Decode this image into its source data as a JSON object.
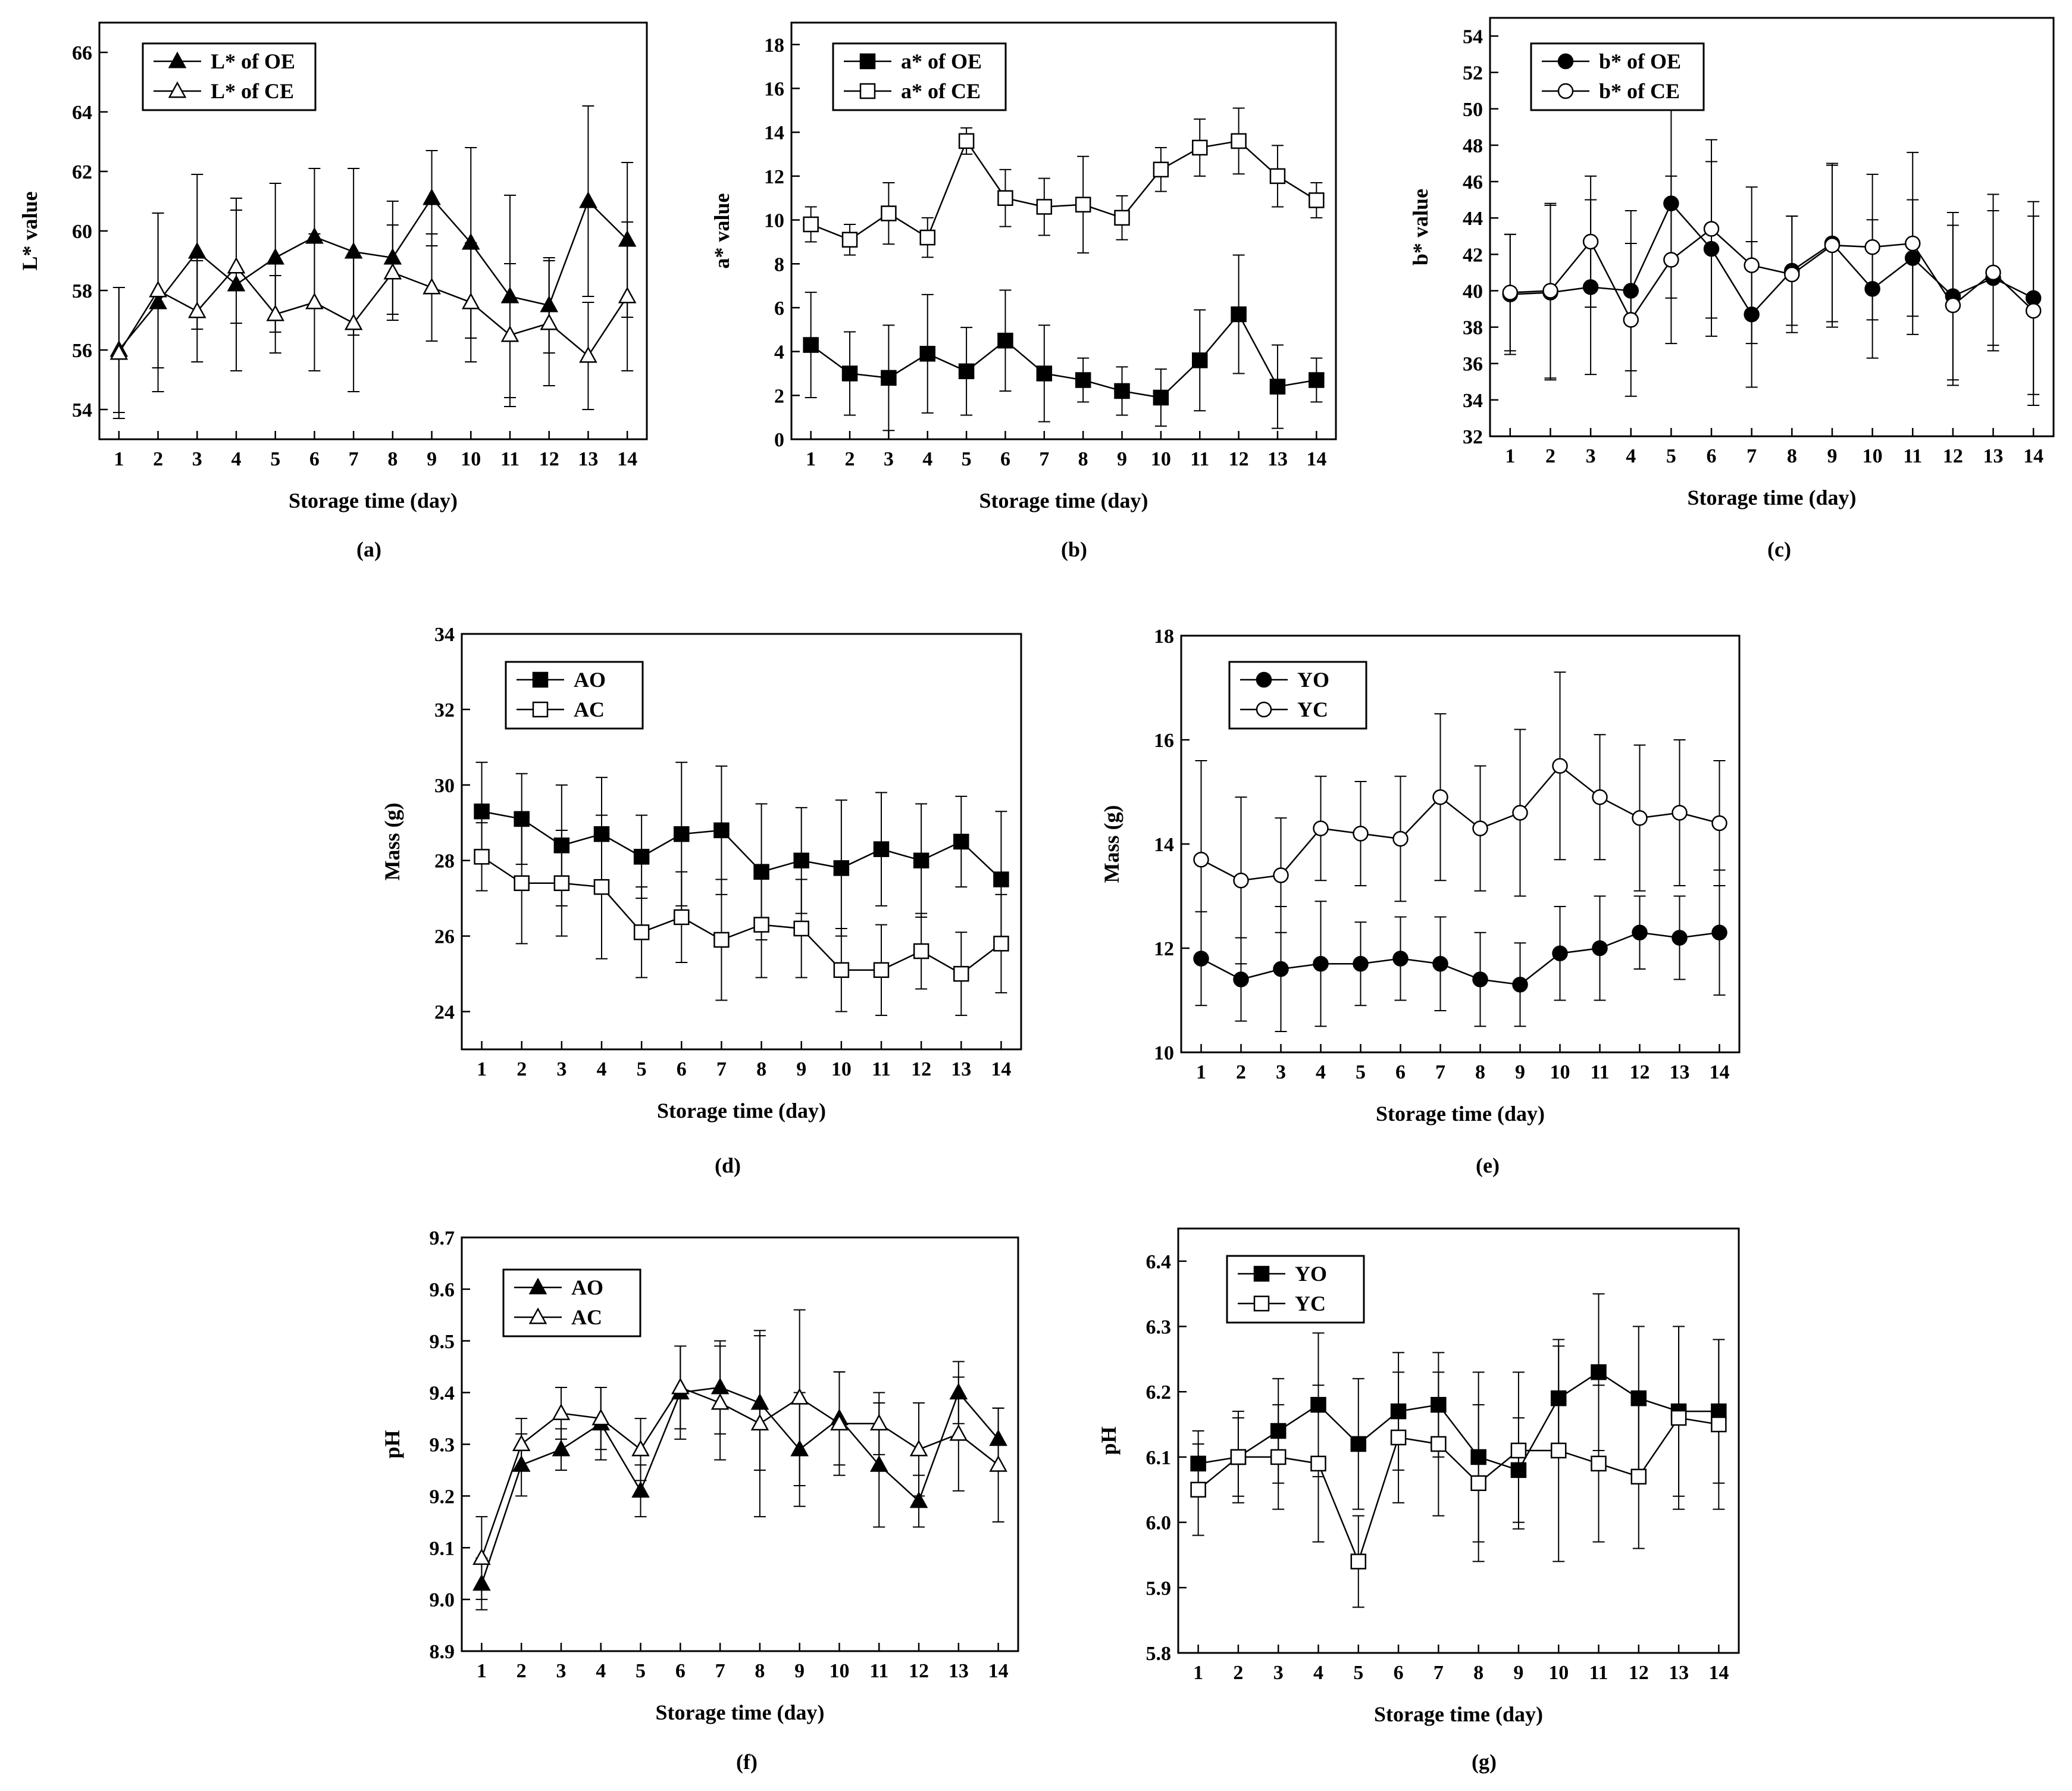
{
  "chart_data": [
    {
      "id": "a",
      "type": "line",
      "caption": "(a)",
      "xlabel": "Storage time (day)",
      "ylabel": "L* value",
      "x": [
        1,
        2,
        3,
        4,
        5,
        6,
        7,
        8,
        9,
        10,
        11,
        12,
        13,
        14
      ],
      "xlim": [
        0.5,
        14.5
      ],
      "ylim": [
        53,
        67
      ],
      "yticks": [
        54,
        56,
        58,
        60,
        62,
        64,
        66
      ],
      "legend_position": "top-left",
      "series": [
        {
          "name": "L* of OE",
          "marker": "triangle",
          "filled": true,
          "values": [
            56.0,
            57.6,
            59.3,
            58.2,
            59.1,
            59.8,
            59.3,
            59.1,
            61.1,
            59.6,
            57.8,
            57.5,
            61.0,
            59.7
          ],
          "errors": [
            2.1,
            3.0,
            2.6,
            2.9,
            2.5,
            2.3,
            2.8,
            1.9,
            1.6,
            3.2,
            3.4,
            1.6,
            3.2,
            2.6
          ]
        },
        {
          "name": "L* of CE",
          "marker": "triangle",
          "filled": false,
          "values": [
            55.9,
            58.0,
            57.3,
            58.8,
            57.2,
            57.6,
            56.9,
            58.6,
            58.1,
            57.6,
            56.5,
            56.9,
            55.8,
            57.8
          ],
          "errors": [
            2.2,
            2.6,
            1.7,
            1.9,
            1.3,
            2.3,
            2.3,
            1.6,
            1.8,
            2.0,
            2.4,
            2.1,
            1.8,
            2.5
          ]
        }
      ]
    },
    {
      "id": "b",
      "type": "line",
      "caption": "(b)",
      "xlabel": "Storage time (day)",
      "ylabel": "a* value",
      "x": [
        1,
        2,
        3,
        4,
        5,
        6,
        7,
        8,
        9,
        10,
        11,
        12,
        13,
        14
      ],
      "xlim": [
        0.5,
        14.5
      ],
      "ylim": [
        0,
        19
      ],
      "yticks": [
        0,
        2,
        4,
        6,
        8,
        10,
        12,
        14,
        16,
        18
      ],
      "legend_position": "top-left",
      "series": [
        {
          "name": "a* of OE",
          "marker": "square",
          "filled": true,
          "values": [
            4.3,
            3.0,
            2.8,
            3.9,
            3.1,
            4.5,
            3.0,
            2.7,
            2.2,
            1.9,
            3.6,
            5.7,
            2.4,
            2.7
          ],
          "errors": [
            2.4,
            1.9,
            2.4,
            2.7,
            2.0,
            2.3,
            2.2,
            1.0,
            1.1,
            1.3,
            2.3,
            2.7,
            1.9,
            1.0
          ]
        },
        {
          "name": "a* of CE",
          "marker": "square",
          "filled": false,
          "values": [
            9.8,
            9.1,
            10.3,
            9.2,
            13.6,
            11.0,
            10.6,
            10.7,
            10.1,
            12.3,
            13.3,
            13.6,
            12.0,
            10.9
          ],
          "errors": [
            0.8,
            0.7,
            1.4,
            0.9,
            0.6,
            1.3,
            1.3,
            2.2,
            1.0,
            1.0,
            1.3,
            1.5,
            1.4,
            0.8
          ]
        }
      ]
    },
    {
      "id": "c",
      "type": "line",
      "caption": "(c)",
      "xlabel": "Storage time (day)",
      "ylabel": "b* value",
      "x": [
        1,
        2,
        3,
        4,
        5,
        6,
        7,
        8,
        9,
        10,
        11,
        12,
        13,
        14
      ],
      "xlim": [
        0.5,
        14.5
      ],
      "ylim": [
        32,
        55
      ],
      "yticks": [
        32,
        34,
        36,
        38,
        40,
        42,
        44,
        46,
        48,
        50,
        52,
        54
      ],
      "legend_position": "top-left",
      "series": [
        {
          "name": "b* of OE",
          "marker": "circle",
          "filled": true,
          "values": [
            39.8,
            39.9,
            40.2,
            40.0,
            44.8,
            42.3,
            38.7,
            41.1,
            42.6,
            40.1,
            41.8,
            39.7,
            40.7,
            39.6
          ],
          "errors": [
            3.3,
            4.8,
            4.8,
            4.4,
            5.2,
            4.8,
            4.0,
            3.0,
            4.3,
            3.8,
            3.2,
            4.6,
            3.7,
            5.3
          ]
        },
        {
          "name": "b* of CE",
          "marker": "circle",
          "filled": false,
          "values": [
            39.9,
            40.0,
            42.7,
            38.4,
            41.7,
            43.4,
            41.4,
            40.9,
            42.5,
            42.4,
            42.6,
            39.2,
            41.0,
            38.9
          ],
          "errors": [
            3.2,
            4.8,
            3.6,
            4.2,
            4.6,
            4.9,
            4.3,
            3.2,
            4.5,
            4.0,
            5.0,
            4.4,
            4.3,
            5.2
          ]
        }
      ]
    },
    {
      "id": "d",
      "type": "line",
      "caption": "(d)",
      "xlabel": "Storage time (day)",
      "ylabel": "Mass (g)",
      "x": [
        1,
        2,
        3,
        4,
        5,
        6,
        7,
        8,
        9,
        10,
        11,
        12,
        13,
        14
      ],
      "xlim": [
        0.5,
        14.5
      ],
      "ylim": [
        23,
        34
      ],
      "yticks": [
        24,
        26,
        28,
        30,
        32,
        34
      ],
      "legend_position": "top-left",
      "series": [
        {
          "name": "AO",
          "marker": "square",
          "filled": true,
          "values": [
            29.3,
            29.1,
            28.4,
            28.7,
            28.1,
            28.7,
            28.8,
            27.7,
            28.0,
            27.8,
            28.3,
            28.0,
            28.5,
            27.5
          ],
          "errors": [
            1.3,
            1.2,
            1.6,
            1.5,
            1.1,
            1.9,
            1.7,
            1.8,
            1.4,
            1.8,
            1.5,
            1.5,
            1.2,
            1.8
          ]
        },
        {
          "name": "AC",
          "marker": "square",
          "filled": false,
          "values": [
            28.1,
            27.4,
            27.4,
            27.3,
            26.1,
            26.5,
            25.9,
            26.3,
            26.2,
            25.1,
            25.1,
            25.6,
            25.0,
            25.8
          ],
          "errors": [
            0.9,
            1.6,
            1.4,
            1.9,
            1.2,
            1.2,
            1.6,
            1.4,
            1.3,
            1.1,
            1.2,
            1.0,
            1.1,
            1.3
          ]
        }
      ]
    },
    {
      "id": "e",
      "type": "line",
      "caption": "(e)",
      "xlabel": "Storage time (day)",
      "ylabel": "Mass (g)",
      "x": [
        1,
        2,
        3,
        4,
        5,
        6,
        7,
        8,
        9,
        10,
        11,
        12,
        13,
        14
      ],
      "xlim": [
        0.5,
        14.5
      ],
      "ylim": [
        10,
        18
      ],
      "yticks": [
        10,
        12,
        14,
        16,
        18
      ],
      "legend_position": "top-left",
      "series": [
        {
          "name": "YO",
          "marker": "circle",
          "filled": true,
          "values": [
            11.8,
            11.4,
            11.6,
            11.7,
            11.7,
            11.8,
            11.7,
            11.4,
            11.3,
            11.9,
            12.0,
            12.3,
            12.2,
            12.3
          ],
          "errors": [
            0.9,
            0.8,
            1.2,
            1.2,
            0.8,
            0.8,
            0.9,
            0.9,
            0.8,
            0.9,
            1.0,
            0.7,
            0.8,
            1.2
          ]
        },
        {
          "name": "YC",
          "marker": "circle",
          "filled": false,
          "values": [
            13.7,
            13.3,
            13.4,
            14.3,
            14.2,
            14.1,
            14.9,
            14.3,
            14.6,
            15.5,
            14.9,
            14.5,
            14.6,
            14.4
          ],
          "errors": [
            1.9,
            1.6,
            1.1,
            1.0,
            1.0,
            1.2,
            1.6,
            1.2,
            1.6,
            1.8,
            1.2,
            1.4,
            1.4,
            1.2
          ]
        }
      ]
    },
    {
      "id": "f",
      "type": "line",
      "caption": "(f)",
      "xlabel": "Storage time (day)",
      "ylabel": "pH",
      "x": [
        1,
        2,
        3,
        4,
        5,
        6,
        7,
        8,
        9,
        10,
        11,
        12,
        13,
        14
      ],
      "xlim": [
        0.5,
        14.5
      ],
      "ylim": [
        8.9,
        9.7
      ],
      "yticks": [
        8.9,
        9.0,
        9.1,
        9.2,
        9.3,
        9.4,
        9.5,
        9.6,
        9.7
      ],
      "legend_position": "top-left",
      "series": [
        {
          "name": "AO",
          "marker": "triangle",
          "filled": true,
          "values": [
            9.03,
            9.26,
            9.29,
            9.34,
            9.21,
            9.4,
            9.41,
            9.38,
            9.29,
            9.35,
            9.26,
            9.19,
            9.4,
            9.31
          ],
          "errors": [
            0.05,
            0.06,
            0.04,
            0.07,
            0.05,
            0.09,
            0.09,
            0.13,
            0.11,
            0.09,
            0.12,
            0.05,
            0.06,
            0.06
          ]
        },
        {
          "name": "AC",
          "marker": "triangle",
          "filled": false,
          "values": [
            9.08,
            9.3,
            9.36,
            9.35,
            9.29,
            9.41,
            9.38,
            9.34,
            9.39,
            9.34,
            9.34,
            9.29,
            9.32,
            9.26
          ],
          "errors": [
            0.08,
            0.05,
            0.05,
            0.06,
            0.06,
            0.08,
            0.11,
            0.18,
            0.17,
            0.1,
            0.06,
            0.09,
            0.11,
            0.11
          ]
        }
      ]
    },
    {
      "id": "g",
      "type": "line",
      "caption": "(g)",
      "xlabel": "Storage time (day)",
      "ylabel": "pH",
      "x": [
        1,
        2,
        3,
        4,
        5,
        6,
        7,
        8,
        9,
        10,
        11,
        12,
        13,
        14
      ],
      "xlim": [
        0.5,
        14.5
      ],
      "ylim": [
        5.8,
        6.45
      ],
      "yticks": [
        5.8,
        5.9,
        6.0,
        6.1,
        6.2,
        6.3,
        6.4
      ],
      "legend_position": "top-left",
      "series": [
        {
          "name": "YO",
          "marker": "square",
          "filled": true,
          "values": [
            6.09,
            6.1,
            6.14,
            6.18,
            6.12,
            6.17,
            6.18,
            6.1,
            6.08,
            6.19,
            6.23,
            6.19,
            6.17,
            6.17
          ],
          "errors": [
            0.05,
            0.06,
            0.08,
            0.11,
            0.1,
            0.09,
            0.08,
            0.13,
            0.08,
            0.08,
            0.12,
            0.11,
            0.13,
            0.11
          ]
        },
        {
          "name": "YC",
          "marker": "square",
          "filled": false,
          "values": [
            6.05,
            6.1,
            6.1,
            6.09,
            5.94,
            6.13,
            6.12,
            6.06,
            6.11,
            6.11,
            6.09,
            6.07,
            6.16,
            6.15
          ],
          "errors": [
            0.07,
            0.07,
            0.08,
            0.12,
            0.07,
            0.1,
            0.11,
            0.12,
            0.12,
            0.17,
            0.12,
            0.11,
            0.14,
            0.13
          ]
        }
      ]
    }
  ]
}
